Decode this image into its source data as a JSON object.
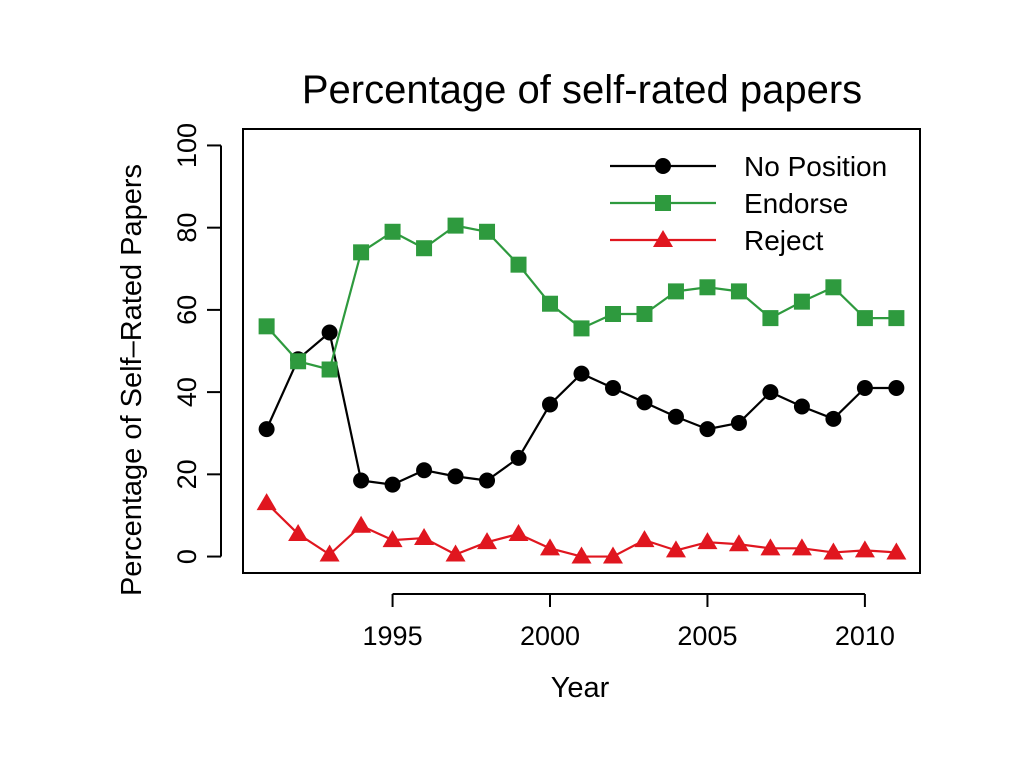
{
  "chart_data": {
    "type": "line",
    "title": "Percentage of self-rated papers",
    "xlabel": "Year",
    "ylabel": "Percentage of Self–Rated Papers",
    "xlim": [
      1990.25,
      2011.75
    ],
    "ylim": [
      -4,
      104
    ],
    "x_ticks": [
      1995,
      2000,
      2005,
      2010
    ],
    "y_ticks": [
      0,
      20,
      40,
      60,
      80,
      100
    ],
    "grid": false,
    "legend_position": "top-right",
    "x": [
      1991,
      1992,
      1993,
      1994,
      1995,
      1996,
      1997,
      1998,
      1999,
      2000,
      2001,
      2002,
      2003,
      2004,
      2005,
      2006,
      2007,
      2008,
      2009,
      2010,
      2011
    ],
    "series": [
      {
        "name": "No Position",
        "color": "#000000",
        "marker": "circle",
        "values": [
          31,
          48,
          54.5,
          18.5,
          17.5,
          21,
          19.5,
          18.5,
          24,
          37,
          44.5,
          41,
          37.5,
          34,
          31,
          32.5,
          40,
          36.5,
          33.5,
          41,
          41
        ]
      },
      {
        "name": "Endorse",
        "color": "#2e9a3e",
        "marker": "square",
        "values": [
          56,
          47.5,
          45.5,
          74,
          79,
          75,
          80.5,
          79,
          71,
          61.5,
          55.5,
          59,
          59,
          64.5,
          65.5,
          64.5,
          58,
          62,
          65.5,
          58,
          58
        ]
      },
      {
        "name": "Reject",
        "color": "#e0161f",
        "marker": "triangle",
        "values": [
          13,
          5.5,
          0.5,
          7.5,
          4,
          4.5,
          0.5,
          3.5,
          5.5,
          2,
          0,
          0,
          4,
          1.5,
          3.5,
          3,
          2,
          2,
          1,
          1.5,
          1
        ]
      }
    ]
  }
}
